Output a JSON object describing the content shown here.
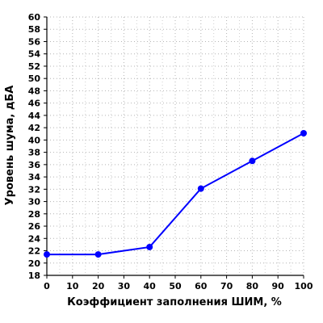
{
  "chart_data": {
    "type": "line",
    "xlabel": "Коэффициент заполнения ШИМ, %",
    "ylabel": "Уровень шума, дБА",
    "xlim": [
      0,
      100
    ],
    "ylim": [
      18,
      60
    ],
    "x_ticks": [
      0,
      10,
      20,
      30,
      40,
      50,
      60,
      70,
      80,
      90,
      100
    ],
    "y_ticks": [
      18,
      20,
      22,
      24,
      26,
      28,
      30,
      32,
      34,
      36,
      38,
      40,
      42,
      44,
      46,
      48,
      50,
      52,
      54,
      56,
      58,
      60
    ],
    "grid": true,
    "legend": "none",
    "line_color": "#0000ff",
    "series": [
      {
        "x": [
          0,
          20,
          40,
          60,
          80,
          100
        ],
        "y": [
          21.4,
          21.4,
          22.6,
          32.1,
          36.6,
          41.1
        ]
      }
    ]
  }
}
